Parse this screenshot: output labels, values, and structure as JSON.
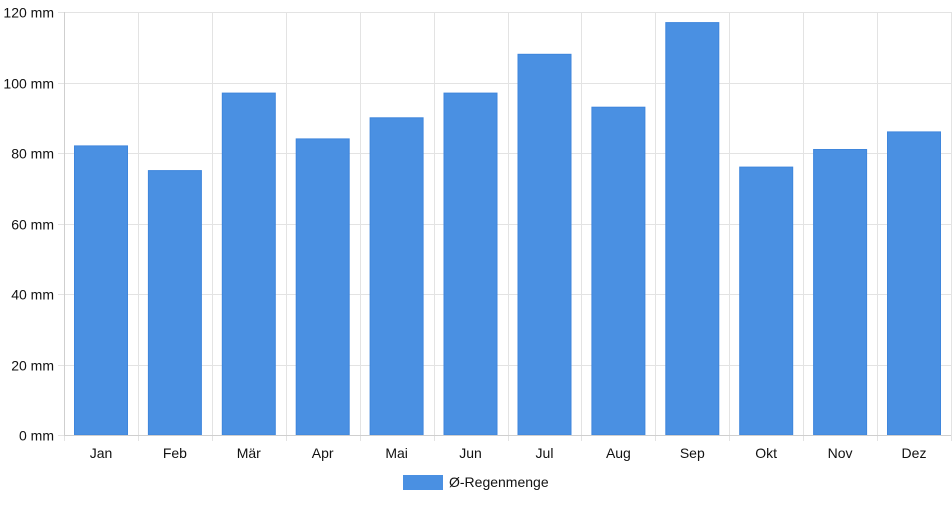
{
  "chart_data": {
    "type": "bar",
    "categories": [
      "Jan",
      "Feb",
      "Mär",
      "Apr",
      "Mai",
      "Jun",
      "Jul",
      "Aug",
      "Sep",
      "Okt",
      "Nov",
      "Dez"
    ],
    "series": [
      {
        "name": "Ø-Regenmenge",
        "values": [
          82,
          75,
          97,
          84,
          90,
          97,
          108,
          93,
          117,
          76,
          81,
          86
        ],
        "color": "#4a90e2"
      }
    ],
    "ylim": [
      0,
      120
    ],
    "yticks": [
      0,
      20,
      40,
      60,
      80,
      100,
      120
    ],
    "ytick_labels": [
      "0 mm",
      "20 mm",
      "40 mm",
      "60 mm",
      "80 mm",
      "100 mm",
      "120 mm"
    ],
    "grid": true,
    "legend": "bottom-center"
  }
}
